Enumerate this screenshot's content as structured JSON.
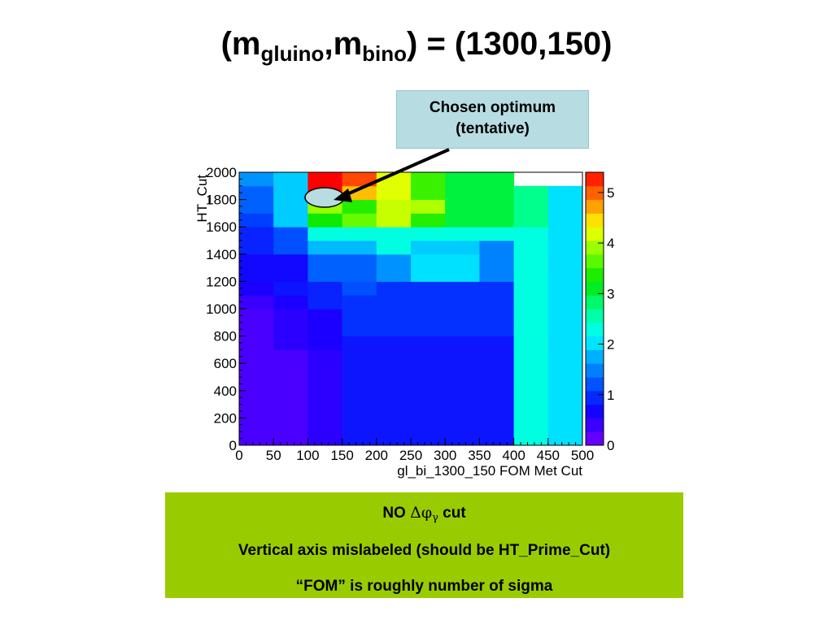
{
  "title": {
    "open": "(m",
    "sub1": "gluino",
    "mid": ",m",
    "sub2": "bino",
    "close": ") = (1300,150)"
  },
  "callout": {
    "line1": "Chosen optimum",
    "line2": "(tentative)"
  },
  "note": {
    "line1_prefix": "NO ",
    "line1_delta": "Δφ",
    "line1_sub": "γ",
    "line1_suffix": " cut",
    "line2": "Vertical axis mislabeled (should be HT_Prime_Cut)",
    "line3": "“FOM” is roughly number of sigma"
  },
  "chart_data": {
    "type": "heatmap",
    "xlabel": "gl_bi_1300_150 FOM Met Cut",
    "ylabel": "HT_Cut",
    "xlim": [
      0,
      500
    ],
    "ylim": [
      0,
      2000
    ],
    "x_ticks": [
      "0",
      "50",
      "100",
      "150",
      "200",
      "250",
      "300",
      "350",
      "400",
      "450",
      "500"
    ],
    "y_ticks": [
      "0",
      "200",
      "400",
      "600",
      "800",
      "1000",
      "1200",
      "1400",
      "1600",
      "1800",
      "2000"
    ],
    "x_edges": [
      0,
      50,
      100,
      150,
      200,
      250,
      300,
      350,
      400,
      450,
      500
    ],
    "y_edges": [
      0,
      100,
      200,
      300,
      400,
      500,
      600,
      700,
      800,
      900,
      1000,
      1100,
      1200,
      1300,
      1400,
      1500,
      1600,
      1700,
      1800,
      1900,
      2000
    ],
    "z": [
      [
        0.3,
        0.3,
        0.5,
        0.8,
        0.8,
        0.8,
        0.8,
        0.8,
        2.3,
        2.0
      ],
      [
        0.3,
        0.3,
        0.5,
        0.8,
        0.8,
        0.8,
        0.8,
        0.8,
        2.3,
        2.0
      ],
      [
        0.3,
        0.3,
        0.5,
        0.8,
        0.8,
        0.8,
        0.8,
        0.8,
        2.3,
        2.0
      ],
      [
        0.3,
        0.3,
        0.5,
        0.8,
        0.8,
        0.8,
        0.8,
        0.8,
        2.3,
        2.0
      ],
      [
        0.3,
        0.3,
        0.5,
        0.8,
        0.8,
        0.8,
        0.8,
        0.8,
        2.3,
        2.0
      ],
      [
        0.3,
        0.3,
        0.5,
        0.8,
        0.8,
        0.8,
        0.8,
        0.8,
        2.3,
        2.0
      ],
      [
        0.3,
        0.3,
        0.5,
        0.8,
        0.8,
        0.8,
        0.8,
        0.8,
        2.3,
        2.0
      ],
      [
        0.3,
        0.5,
        0.6,
        0.8,
        0.8,
        0.8,
        0.8,
        0.8,
        2.3,
        2.0
      ],
      [
        0.3,
        0.5,
        0.6,
        1.0,
        1.0,
        1.0,
        1.0,
        1.0,
        2.3,
        2.0
      ],
      [
        0.3,
        0.5,
        0.6,
        1.0,
        1.0,
        1.0,
        1.0,
        1.0,
        2.3,
        2.0
      ],
      [
        0.4,
        0.6,
        0.9,
        1.0,
        1.0,
        1.0,
        1.0,
        1.0,
        2.3,
        2.0
      ],
      [
        0.6,
        0.8,
        0.9,
        1.2,
        1.0,
        1.0,
        1.0,
        1.0,
        2.3,
        2.0
      ],
      [
        0.7,
        0.7,
        1.3,
        1.3,
        1.6,
        2.0,
        2.0,
        1.5,
        2.3,
        2.0
      ],
      [
        0.7,
        0.7,
        1.3,
        1.3,
        1.6,
        2.0,
        2.0,
        1.5,
        2.3,
        2.0
      ],
      [
        0.9,
        1.2,
        1.8,
        1.8,
        2.3,
        1.9,
        1.9,
        1.5,
        2.3,
        2.0
      ],
      [
        0.9,
        1.2,
        2.3,
        2.3,
        2.3,
        2.3,
        2.3,
        2.3,
        2.3,
        2.0
      ],
      [
        1.1,
        1.9,
        3.3,
        3.7,
        4.1,
        3.4,
        3.0,
        3.0,
        2.7,
        2.0
      ],
      [
        1.3,
        1.9,
        3.9,
        3.4,
        4.1,
        4.0,
        3.0,
        3.0,
        2.7,
        2.0
      ],
      [
        1.3,
        1.9,
        5.4,
        4.6,
        4.2,
        3.5,
        3.0,
        3.0,
        2.7,
        2.0
      ],
      [
        1.6,
        1.9,
        5.4,
        5.1,
        4.2,
        3.5,
        3.0,
        3.0,
        null,
        null
      ]
    ],
    "zlim": [
      0,
      5.4
    ],
    "colorbar_ticks": [
      "0",
      "1",
      "2",
      "3",
      "4",
      "5"
    ],
    "annotation": {
      "text": "Chosen optimum (tentative)",
      "x": 125,
      "y": 1825
    }
  }
}
